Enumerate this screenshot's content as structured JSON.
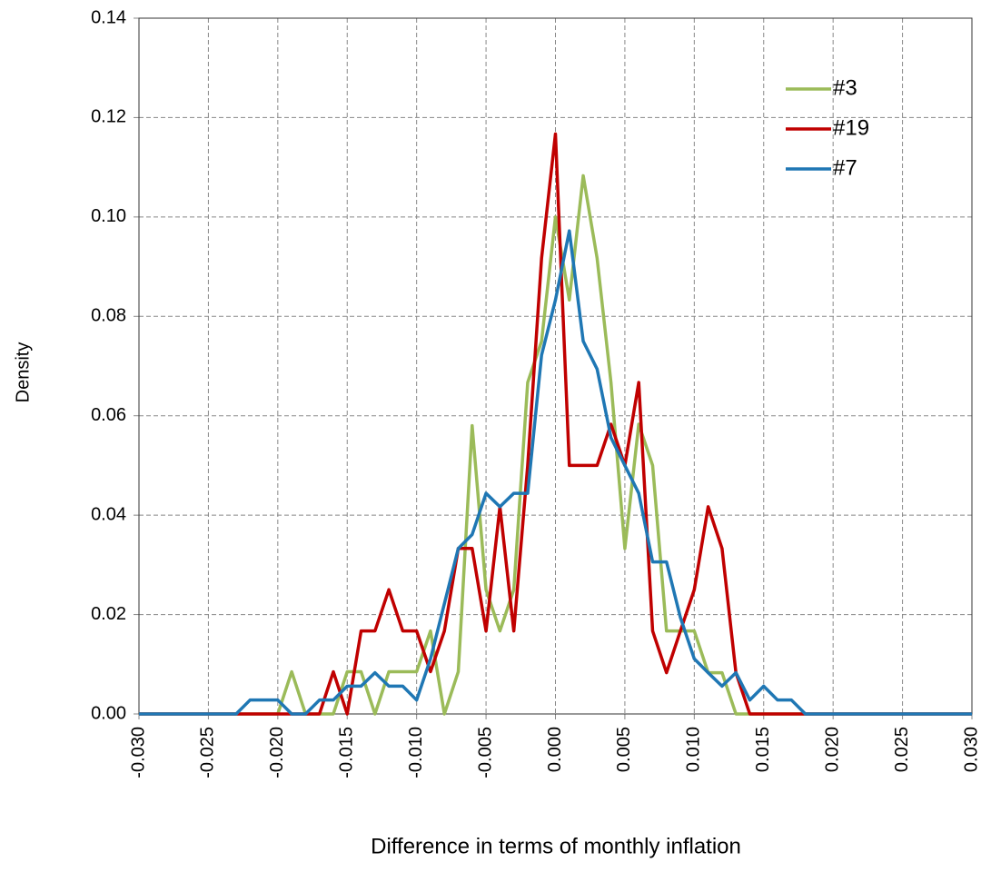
{
  "chart_data": {
    "type": "line",
    "x": [
      -0.03,
      -0.029,
      -0.028,
      -0.027,
      -0.026,
      -0.025,
      -0.024,
      -0.023,
      -0.022,
      -0.021,
      -0.02,
      -0.019,
      -0.018,
      -0.017,
      -0.016,
      -0.015,
      -0.014,
      -0.013,
      -0.012,
      -0.011,
      -0.01,
      -0.009,
      -0.008,
      -0.007,
      -0.006,
      -0.005,
      -0.004,
      -0.003,
      -0.002,
      -0.001,
      0,
      0.001,
      0.002,
      0.003,
      0.004,
      0.005,
      0.006,
      0.007,
      0.008,
      0.009,
      0.01,
      0.011,
      0.012,
      0.013,
      0.014,
      0.015,
      0.016,
      0.017,
      0.018,
      0.019,
      0.02,
      0.021,
      0.022,
      0.023,
      0.024,
      0.025,
      0.026,
      0.027,
      0.028,
      0.029,
      0.03
    ],
    "series": [
      {
        "name": "#3",
        "color": "#9bbb59",
        "values": [
          0,
          0,
          0,
          0,
          0,
          0,
          0,
          0,
          0,
          0,
          0,
          0.0085,
          0,
          0,
          0,
          0.0085,
          0.0085,
          0,
          0.0085,
          0.0085,
          0.0085,
          0.0167,
          0,
          0.0085,
          0.058,
          0.025,
          0.0167,
          0.025,
          0.0667,
          0.075,
          0.1,
          0.0833,
          0.1083,
          0.0917,
          0.0667,
          0.0333,
          0.0583,
          0.05,
          0.0167,
          0.0167,
          0.0167,
          0.0083,
          0.0083,
          0,
          0,
          0,
          0,
          0,
          0,
          0,
          0,
          0,
          0,
          0,
          0,
          0,
          0,
          0,
          0,
          0,
          0
        ]
      },
      {
        "name": "#19",
        "color": "#c00000",
        "values": [
          0,
          0,
          0,
          0,
          0,
          0,
          0,
          0,
          0,
          0,
          0,
          0,
          0,
          0,
          0.0085,
          0,
          0.0167,
          0.0167,
          0.025,
          0.0167,
          0.0167,
          0.0085,
          0.0167,
          0.0333,
          0.0333,
          0.0167,
          0.0417,
          0.0167,
          0.05,
          0.0917,
          0.1167,
          0.05,
          0.05,
          0.05,
          0.0583,
          0.05,
          0.0667,
          0.0167,
          0.0083,
          0.0167,
          0.025,
          0.0417,
          0.0333,
          0.0083,
          0,
          0,
          0,
          0,
          0,
          0,
          0,
          0,
          0,
          0,
          0,
          0,
          0,
          0,
          0,
          0,
          0
        ]
      },
      {
        "name": "#7",
        "color": "#1f77b4",
        "values": [
          0,
          0,
          0,
          0,
          0,
          0,
          0,
          0,
          0.0028,
          0.0028,
          0.0028,
          0,
          0,
          0.0028,
          0.0028,
          0.0056,
          0.0056,
          0.0083,
          0.0056,
          0.0056,
          0.0028,
          0.0111,
          0.0222,
          0.0333,
          0.0361,
          0.0444,
          0.0417,
          0.0444,
          0.0444,
          0.0722,
          0.0833,
          0.0972,
          0.075,
          0.0694,
          0.0556,
          0.05,
          0.0444,
          0.0306,
          0.0306,
          0.0194,
          0.0111,
          0.0083,
          0.0056,
          0.0083,
          0.0028,
          0.0056,
          0.0028,
          0.0028,
          0,
          0,
          0,
          0,
          0,
          0,
          0,
          0,
          0,
          0,
          0,
          0,
          0
        ]
      }
    ],
    "x_label": "Difference in terms of monthly inflation",
    "y_label": "Density",
    "xlim": [
      -0.03,
      0.03
    ],
    "ylim": [
      0,
      0.14
    ],
    "xticks": [
      {
        "value": -0.03,
        "label": "-0.030"
      },
      {
        "value": -0.025,
        "label": "-0.025"
      },
      {
        "value": -0.02,
        "label": "-0.020"
      },
      {
        "value": -0.015,
        "label": "-0.015"
      },
      {
        "value": -0.01,
        "label": "-0.010"
      },
      {
        "value": -0.005,
        "label": "-0.005"
      },
      {
        "value": 0,
        "label": "0.000"
      },
      {
        "value": 0.005,
        "label": "0.005"
      },
      {
        "value": 0.01,
        "label": "0.010"
      },
      {
        "value": 0.015,
        "label": "0.015"
      },
      {
        "value": 0.02,
        "label": "0.020"
      },
      {
        "value": 0.025,
        "label": "0.025"
      },
      {
        "value": 0.03,
        "label": "0.030"
      }
    ],
    "yticks": [
      {
        "value": 0,
        "label": "0.00"
      },
      {
        "value": 0.02,
        "label": "0.02"
      },
      {
        "value": 0.04,
        "label": "0.04"
      },
      {
        "value": 0.06,
        "label": "0.06"
      },
      {
        "value": 0.08,
        "label": "0.08"
      },
      {
        "value": 0.1,
        "label": "0.10"
      },
      {
        "value": 0.12,
        "label": "0.12"
      },
      0.14
    ],
    "grid": true,
    "legend": "upper-right"
  }
}
